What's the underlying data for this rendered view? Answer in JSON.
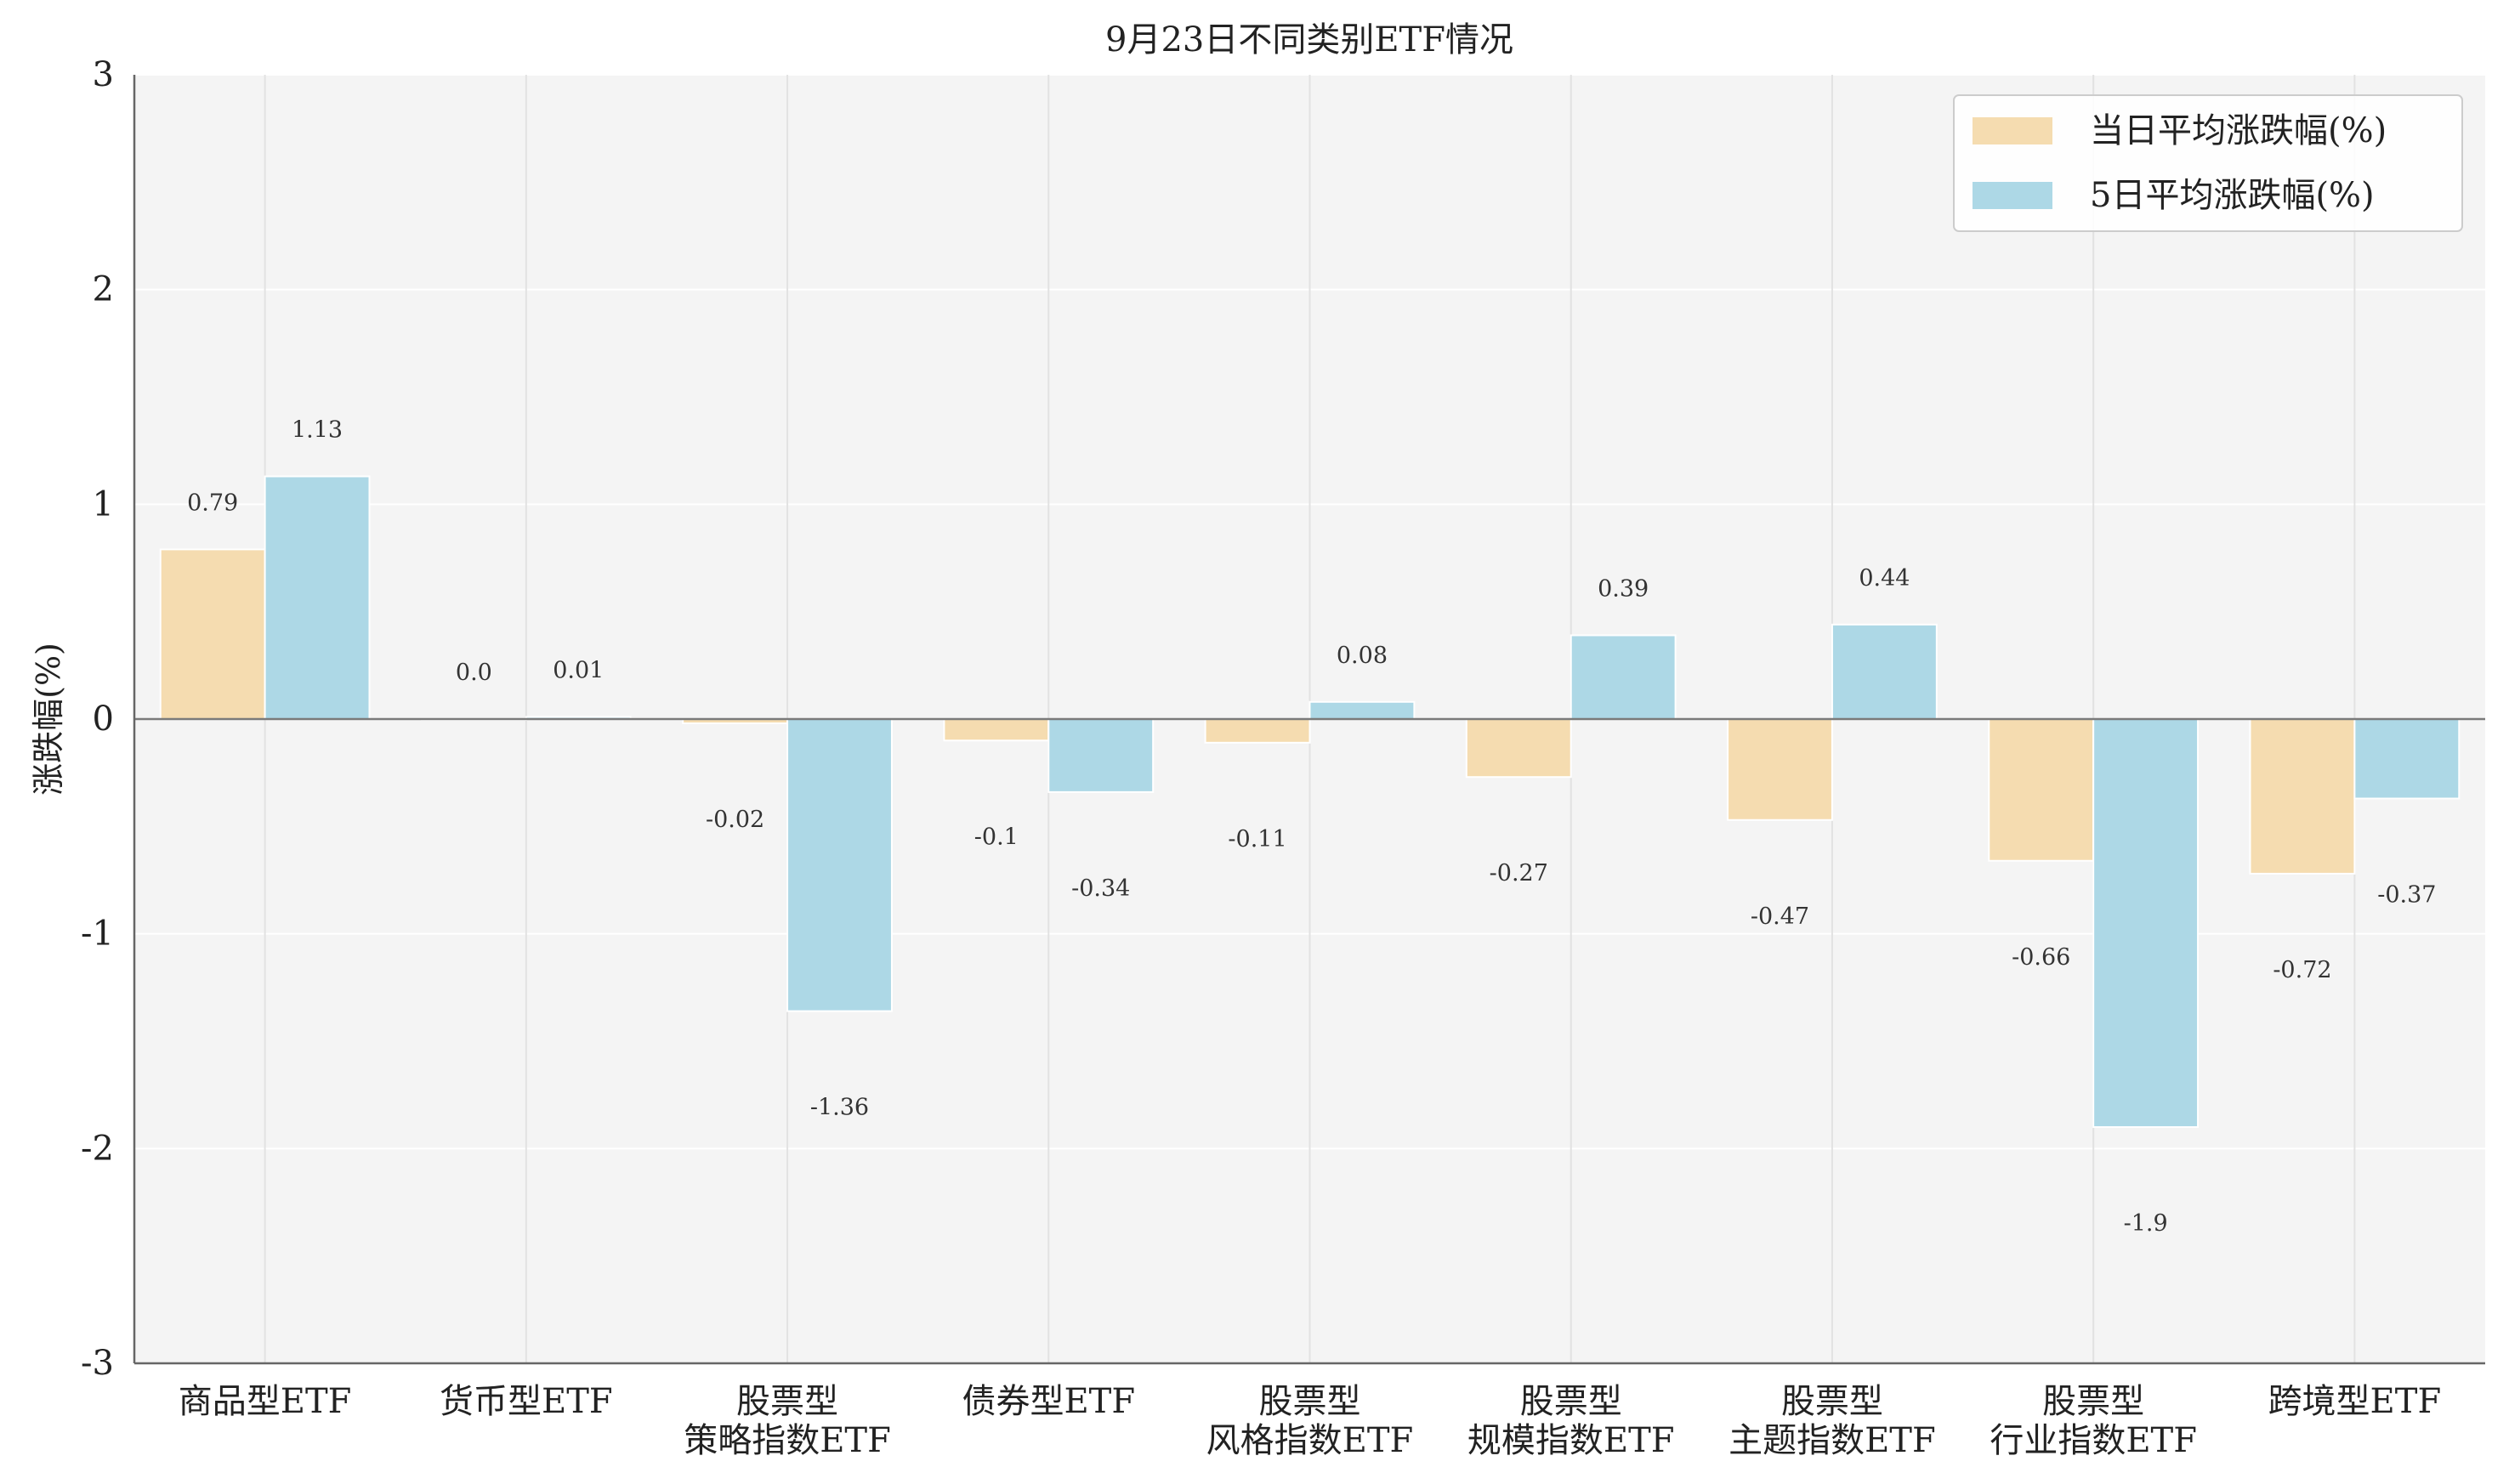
{
  "chart_data": {
    "type": "bar",
    "title": "9月23日不同类别ETF情况",
    "xlabel": "",
    "ylabel": "涨跌幅(%)",
    "ylim": [
      -3,
      3
    ],
    "yticks": [
      "3",
      "2",
      "1",
      "0",
      "-1",
      "-2",
      "-3"
    ],
    "ytick_values": [
      3,
      2,
      1,
      0,
      -1,
      -2,
      -3
    ],
    "grid": true,
    "legend_position": "top-right",
    "categories": [
      [
        "商品型ETF"
      ],
      [
        "货币型ETF"
      ],
      [
        "股票型",
        "策略指数ETF"
      ],
      [
        "债券型ETF"
      ],
      [
        "股票型",
        "风格指数ETF"
      ],
      [
        "股票型",
        "规模指数ETF"
      ],
      [
        "股票型",
        "主题指数ETF"
      ],
      [
        "股票型",
        "行业指数ETF"
      ],
      [
        "跨境型ETF"
      ]
    ],
    "series": [
      {
        "name": "当日平均涨跌幅(%)",
        "color": "#f5dcb0",
        "values": [
          0.79,
          0.0,
          -0.02,
          -0.1,
          -0.11,
          -0.27,
          -0.47,
          -0.66,
          -0.72
        ],
        "labels": [
          "0.79",
          "0.0",
          "-0.02",
          "-0.1",
          "-0.11",
          "-0.27",
          "-0.47",
          "-0.66",
          "-0.72"
        ]
      },
      {
        "name": "5日平均涨跌幅(%)",
        "color": "#add8e6",
        "values": [
          1.13,
          0.01,
          -1.36,
          -0.34,
          0.08,
          0.39,
          0.44,
          -1.9,
          -0.37
        ],
        "labels": [
          "1.13",
          "0.01",
          "-1.36",
          "-0.34",
          "0.08",
          "0.39",
          "0.44",
          "-1.9",
          "-0.37"
        ]
      }
    ]
  }
}
